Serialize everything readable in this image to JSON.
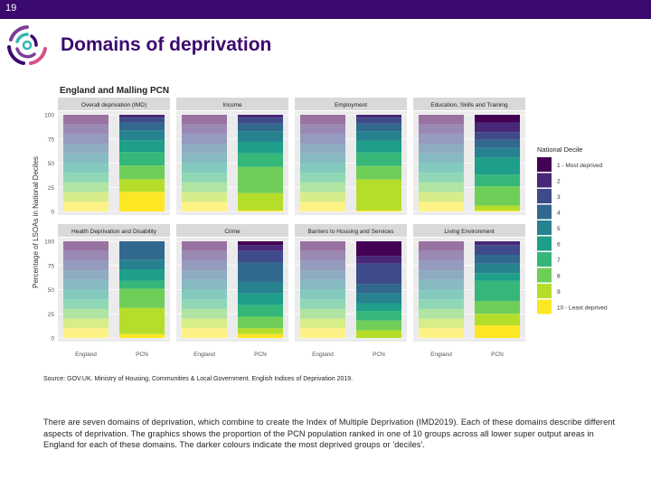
{
  "slide": {
    "number": "19",
    "title": "Domains of deprivation"
  },
  "colors": {
    "bar": "#3a0a6e",
    "title": "#3a0a6e",
    "strip": "#d9d9d9",
    "panel_bg": "#ebebeb",
    "deciles": [
      "#440154",
      "#482878",
      "#3e4a89",
      "#31688e",
      "#26828e",
      "#1f9e89",
      "#35b779",
      "#6ece58",
      "#b5de2b",
      "#fde725"
    ]
  },
  "logo": {
    "icon": "circular-swirl-logo-icon"
  },
  "chart_data": {
    "type": "bar",
    "stacked": true,
    "title": "England and Malling PCN",
    "ylabel": "Percentage of LSOAs in National Deciles",
    "ylim": [
      0,
      100
    ],
    "yticks": [
      "0",
      "25",
      "50",
      "75",
      "100"
    ],
    "categories": [
      "England",
      "PCN"
    ],
    "legend": {
      "title": "National Decile",
      "placement": "right",
      "labels": [
        "1 - Most deprived",
        "2",
        "3",
        "4",
        "5",
        "6",
        "7",
        "8",
        "9",
        "10 - Least deprived"
      ]
    },
    "grid": true,
    "facets": [
      {
        "name": "Overall deprivation (IMD)",
        "pcn": [
          0,
          3,
          5,
          8,
          10,
          12,
          14,
          14,
          13,
          20
        ]
      },
      {
        "name": "Income",
        "pcn": [
          0,
          3,
          6,
          8,
          11,
          12,
          14,
          27,
          18,
          1
        ]
      },
      {
        "name": "Employment",
        "pcn": [
          0,
          3,
          6,
          8,
          10,
          12,
          14,
          14,
          32,
          1
        ]
      },
      {
        "name": "Education, Skills and Training",
        "pcn": [
          8,
          10,
          8,
          8,
          10,
          18,
          12,
          20,
          5,
          1
        ]
      },
      {
        "name": "Health Deprivation and Disability",
        "pcn": [
          0,
          0,
          0,
          19,
          10,
          12,
          8,
          20,
          27,
          4
        ]
      },
      {
        "name": "Crime",
        "pcn": [
          4,
          6,
          12,
          20,
          12,
          12,
          12,
          12,
          6,
          4
        ]
      },
      {
        "name": "Barriers to Housing and Services",
        "pcn": [
          15,
          8,
          21,
          10,
          10,
          8,
          10,
          10,
          8,
          0
        ]
      },
      {
        "name": "Living Environment",
        "pcn": [
          0,
          4,
          10,
          9,
          10,
          8,
          21,
          13,
          12,
          13
        ]
      }
    ],
    "england": [
      10,
      10,
      10,
      10,
      10,
      10,
      10,
      10,
      10,
      10
    ]
  },
  "source": "Source: GOV.UK. Ministry of Housing, Communities & Local Government. English Indices of Deprivation 2019.",
  "description": "There are seven domains of deprivation, which combine to create the Index of Multiple Deprivation (IMD2019). Each of these domains describe different aspects of deprivation. The graphics shows the proportion of the PCN population ranked in one of 10 groups across all lower super output areas in England for each of these domains. The darker colours indicate the most deprived groups or 'deciles'."
}
